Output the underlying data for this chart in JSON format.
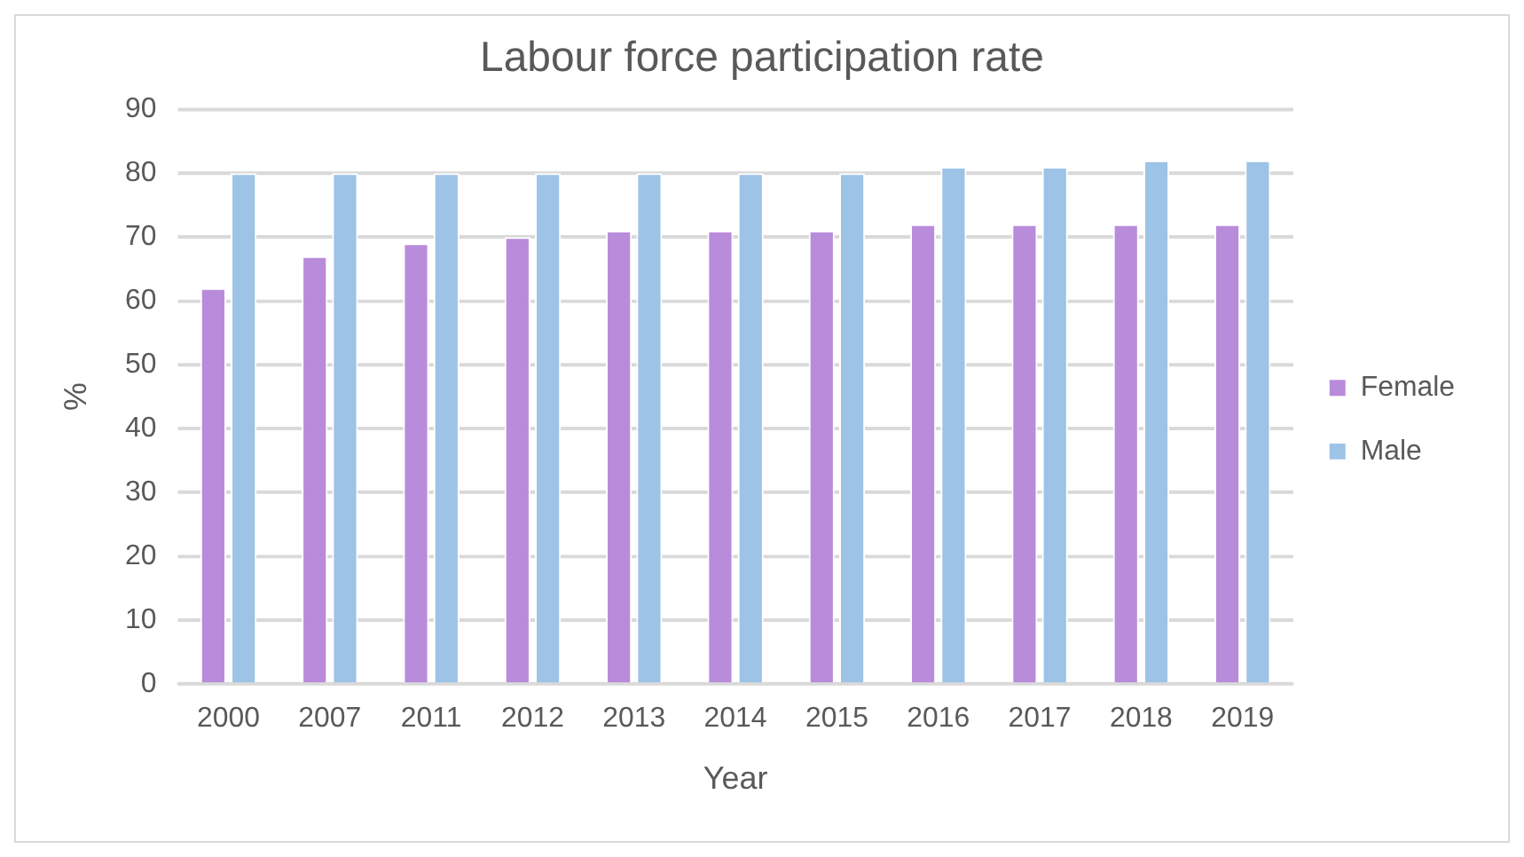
{
  "chart_data": {
    "type": "bar",
    "title": "Labour force participation rate",
    "xlabel": "Year",
    "ylabel": "%",
    "categories": [
      "2000",
      "2007",
      "2011",
      "2012",
      "2013",
      "2014",
      "2015",
      "2016",
      "2017",
      "2018",
      "2019"
    ],
    "series": [
      {
        "name": "Female",
        "color": "#b98bdb",
        "values": [
          62,
          67,
          69,
          70,
          71,
          71,
          71,
          72,
          72,
          72,
          72
        ]
      },
      {
        "name": "Male",
        "color": "#9dc3e6",
        "values": [
          80,
          80,
          80,
          80,
          80,
          80,
          80,
          81,
          81,
          82,
          82
        ]
      }
    ],
    "ylim": [
      0,
      90
    ],
    "yticks": [
      0,
      10,
      20,
      30,
      40,
      50,
      60,
      70,
      80,
      90
    ],
    "grid": "y",
    "legend": "right"
  }
}
